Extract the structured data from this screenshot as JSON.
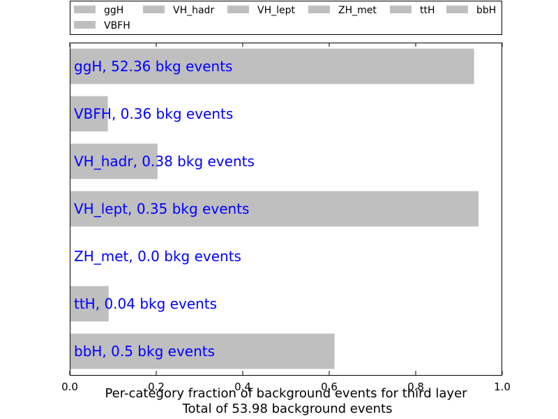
{
  "chart_data": {
    "type": "bar",
    "orientation": "horizontal",
    "categories": [
      "ggH",
      "VBFH",
      "VH_hadr",
      "VH_lept",
      "ZH_met",
      "ttH",
      "bbH"
    ],
    "values": [
      0.935,
      0.088,
      0.203,
      0.945,
      0.0,
      0.09,
      0.612
    ],
    "bar_labels": [
      "ggH, 52.36 bkg events",
      "VBFH, 0.36 bkg events",
      "VH_hadr, 0.38 bkg events",
      "VH_lept, 0.35 bkg events",
      "ZH_met, 0.0 bkg events",
      "ttH, 0.04 bkg events",
      "bbH, 0.5 bkg events"
    ],
    "legend": [
      "ggH",
      "VH_hadr",
      "VH_lept",
      "ZH_met",
      "ttH",
      "bbH",
      "VBFH"
    ],
    "legend_placement": "top",
    "xlabel_line1": "Per-category fraction of background events for third layer",
    "xlabel_line2": "Total of 53.98 background events",
    "xlim": [
      0.0,
      1.0
    ],
    "xticks": [
      "0.0",
      "0.2",
      "0.4",
      "0.6",
      "0.8",
      "1.0"
    ],
    "bar_color": "#bfbfbf",
    "label_color": "#0000ff",
    "grid": false
  }
}
